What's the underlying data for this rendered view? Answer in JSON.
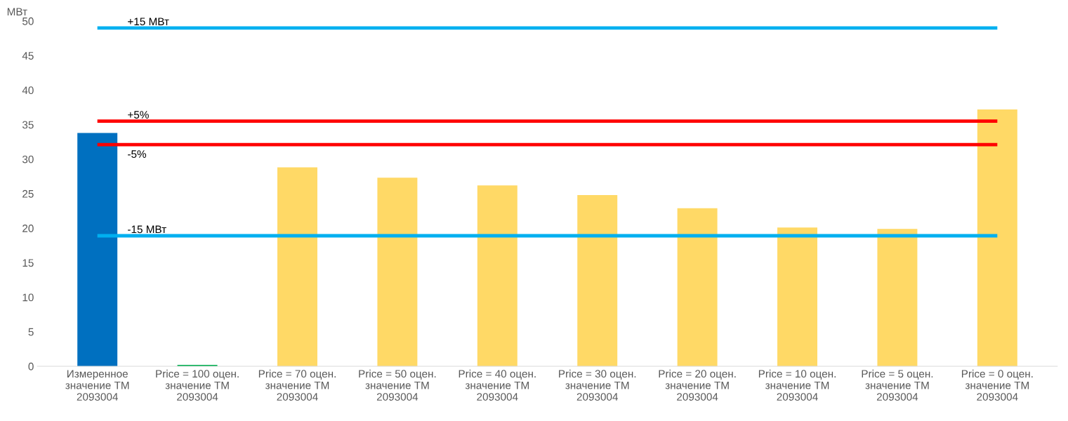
{
  "chart_data": {
    "type": "bar",
    "ylabel": "МВт",
    "categories": [
      "Измеренное\nзначение ТМ\n2093004",
      "Price = 100 оцен.\nзначение ТМ\n2093004",
      "Price = 70 оцен.\nзначение ТМ\n2093004",
      "Price = 50 оцен.\nзначение ТМ\n2093004",
      "Price = 40 оцен.\nзначение ТМ\n2093004",
      "Price = 30 оцен.\nзначение ТМ\n2093004",
      "Price = 20 оцен.\nзначение ТМ\n2093004",
      "Price = 10 оцен.\nзначение ТМ\n2093004",
      "Price = 5 оцен.\nзначение ТМ\n2093004",
      "Price = 0 оцен.\nзначение ТМ\n2093004"
    ],
    "values": [
      33.8,
      0.2,
      28.8,
      27.3,
      26.2,
      24.8,
      22.9,
      20.1,
      19.9,
      37.2
    ],
    "colors": [
      "#0070c0",
      "#00b050",
      "#ffd966",
      "#ffd966",
      "#ffd966",
      "#ffd966",
      "#ffd966",
      "#ffd966",
      "#ffd966",
      "#ffd966"
    ],
    "ylim": [
      0,
      50
    ],
    "yticks": [
      0,
      5,
      10,
      15,
      20,
      25,
      30,
      35,
      40,
      45,
      50
    ],
    "grid": false,
    "ref_lines": [
      {
        "axis": "y",
        "value": 49.0,
        "label": "+15 МВт",
        "color": "#00b0f0"
      },
      {
        "axis": "y",
        "value": 35.5,
        "color": "#ff0000"
      },
      {
        "axis": "y",
        "value": 32.1,
        "color": "#ff0000"
      },
      {
        "axis": "y",
        "value": 18.9,
        "label": "-15 МВт",
        "color": "#00b0f0"
      }
    ],
    "annotations": [
      {
        "text": "+5%",
        "y": 35.5
      },
      {
        "text": "-5%",
        "y": 32.1
      }
    ]
  }
}
